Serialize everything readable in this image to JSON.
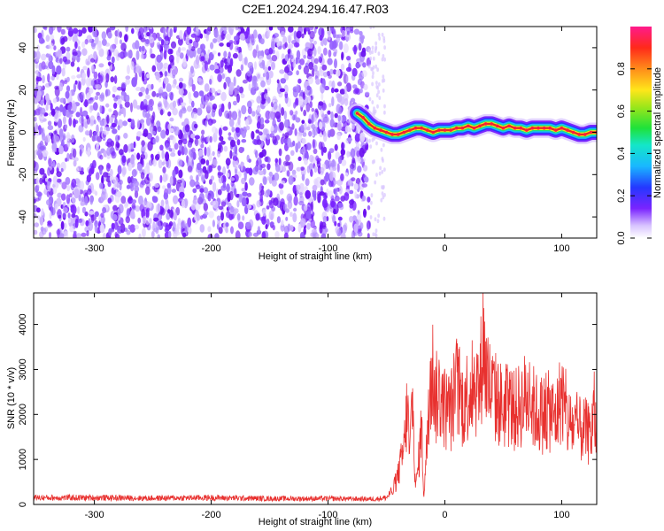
{
  "title": "C2E1.2024.294.16.47.R03",
  "colors": {
    "dots": "#7a24ff",
    "snr_line": "#e8312f",
    "trace_core": "#d42c2c",
    "trace_halo": "#1fe27a"
  },
  "chart_data": [
    {
      "type": "heatmap",
      "title": "C2E1.2024.294.16.47.R03",
      "xlabel": "Height of straight line (km)",
      "ylabel": "Frequency (Hz)",
      "xlim": [
        -352,
        130
      ],
      "ylim": [
        -50,
        50
      ],
      "xticks": [
        -300,
        -200,
        -100,
        0,
        100
      ],
      "yticks": [
        -40,
        -20,
        0,
        20,
        40
      ],
      "noise_region_x": [
        -352,
        -65
      ],
      "signal_trace": {
        "x": [
          -75,
          -70,
          -65,
          -60,
          -55,
          -50,
          -45,
          -40,
          -35,
          -30,
          -25,
          -20,
          -15,
          -10,
          -5,
          0,
          5,
          10,
          15,
          20,
          25,
          30,
          35,
          40,
          45,
          50,
          55,
          60,
          65,
          70,
          75,
          80,
          85,
          90,
          95,
          100,
          105,
          110,
          115,
          120,
          125,
          130
        ],
        "y": [
          9,
          7,
          4,
          2,
          1,
          0,
          -1,
          -1,
          0,
          1,
          2,
          2,
          1,
          0,
          1,
          1,
          1,
          2,
          2,
          3,
          2,
          3,
          4,
          4,
          3,
          2,
          3,
          2,
          2,
          1,
          2,
          2,
          2,
          2,
          1,
          2,
          1,
          0,
          -1,
          -1,
          0,
          0
        ]
      },
      "colorbar": {
        "label": "Normalized spectral amplitude",
        "ticks": [
          0.0,
          0.2,
          0.4,
          0.6,
          0.8
        ],
        "range": [
          0,
          1
        ]
      }
    },
    {
      "type": "line",
      "xlabel": "Height of straight line (km)",
      "ylabel": "SNR (10 * v/v)",
      "xlim": [
        -352,
        130
      ],
      "ylim": [
        0,
        4700
      ],
      "xticks": [
        -300,
        -200,
        -100,
        0,
        100
      ],
      "yticks": [
        0,
        1000,
        2000,
        3000,
        4000
      ],
      "x": [
        -352,
        -300,
        -250,
        -200,
        -150,
        -100,
        -60,
        -50,
        -45,
        -40,
        -35,
        -32,
        -30,
        -28,
        -25,
        -22,
        -20,
        -18,
        -15,
        -12,
        -10,
        -8,
        -5,
        0,
        5,
        10,
        15,
        20,
        25,
        30,
        33,
        35,
        40,
        45,
        50,
        55,
        60,
        70,
        80,
        90,
        95,
        100,
        105,
        110,
        115,
        120,
        125,
        128,
        130
      ],
      "y": [
        150,
        150,
        140,
        150,
        130,
        130,
        120,
        150,
        300,
        800,
        1500,
        2700,
        1200,
        3000,
        400,
        1300,
        2200,
        200,
        1800,
        3300,
        3600,
        2800,
        3000,
        2600,
        2500,
        3200,
        2700,
        3000,
        3300,
        3100,
        4700,
        3500,
        3000,
        2800,
        2600,
        2700,
        2500,
        2900,
        2400,
        2500,
        2300,
        3000,
        2200,
        2100,
        2000,
        2000,
        1800,
        2600,
        1500
      ]
    }
  ]
}
